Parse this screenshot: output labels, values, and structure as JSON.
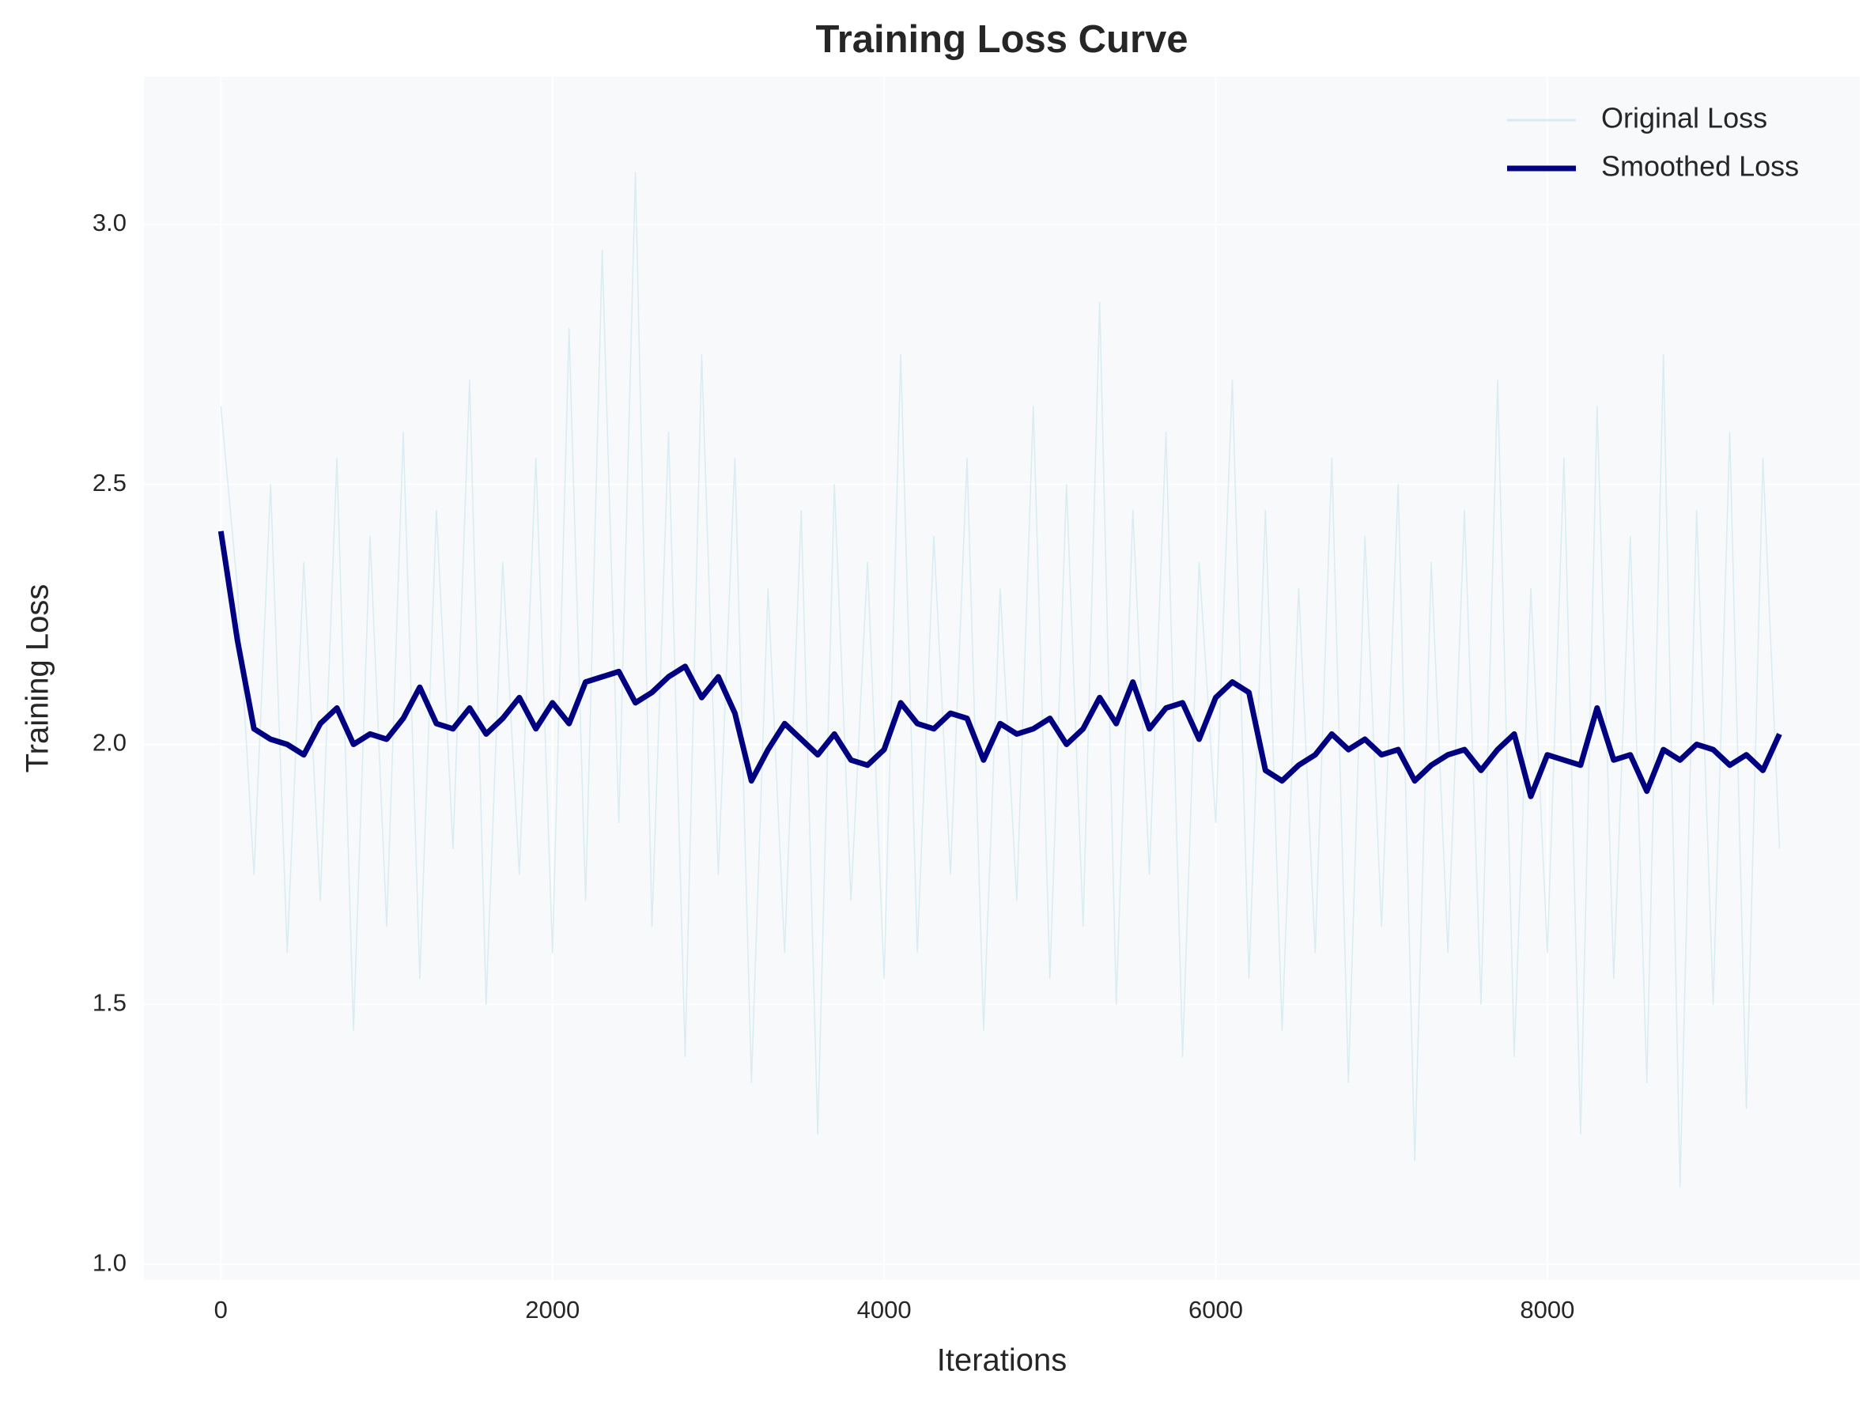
{
  "chart_data": {
    "type": "line",
    "title": "Training Loss Curve",
    "xlabel": "Iterations",
    "ylabel": "Training Loss",
    "x": [
      0,
      100,
      200,
      300,
      400,
      500,
      600,
      700,
      800,
      900,
      1000,
      1100,
      1200,
      1300,
      1400,
      1500,
      1600,
      1700,
      1800,
      1900,
      2000,
      2100,
      2200,
      2300,
      2400,
      2500,
      2600,
      2700,
      2800,
      2900,
      3000,
      3100,
      3200,
      3300,
      3400,
      3500,
      3600,
      3700,
      3800,
      3900,
      4000,
      4100,
      4200,
      4300,
      4400,
      4500,
      4600,
      4700,
      4800,
      4900,
      5000,
      5100,
      5200,
      5300,
      5400,
      5500,
      5600,
      5700,
      5800,
      5900,
      6000,
      6100,
      6200,
      6300,
      6400,
      6500,
      6600,
      6700,
      6800,
      6900,
      7000,
      7100,
      7200,
      7300,
      7400,
      7500,
      7600,
      7700,
      7800,
      7900,
      8000,
      8100,
      8200,
      8300,
      8400,
      8500,
      8600,
      8700,
      8800,
      8900,
      9000,
      9100,
      9200,
      9300,
      9400
    ],
    "series": [
      {
        "name": "Original Loss",
        "color": "#d9ecf0",
        "width": 1.5,
        "values": [
          2.65,
          2.3,
          1.75,
          2.5,
          1.6,
          2.35,
          1.7,
          2.55,
          1.45,
          2.4,
          1.65,
          2.6,
          1.55,
          2.45,
          1.8,
          2.7,
          1.5,
          2.35,
          1.75,
          2.55,
          1.6,
          2.8,
          1.7,
          2.95,
          1.85,
          3.1,
          1.65,
          2.6,
          1.4,
          2.75,
          1.75,
          2.55,
          1.35,
          2.3,
          1.6,
          2.45,
          1.25,
          2.5,
          1.7,
          2.35,
          1.55,
          2.75,
          1.6,
          2.4,
          1.75,
          2.55,
          1.45,
          2.3,
          1.7,
          2.65,
          1.55,
          2.5,
          1.65,
          2.85,
          1.5,
          2.45,
          1.75,
          2.6,
          1.4,
          2.35,
          1.85,
          2.7,
          1.55,
          2.45,
          1.45,
          2.3,
          1.6,
          2.55,
          1.35,
          2.4,
          1.65,
          2.5,
          1.2,
          2.35,
          1.6,
          2.45,
          1.5,
          2.7,
          1.4,
          2.3,
          1.6,
          2.55,
          1.25,
          2.65,
          1.55,
          2.4,
          1.35,
          2.75,
          1.15,
          2.45,
          1.5,
          2.6,
          1.3,
          2.55,
          1.8
        ]
      },
      {
        "name": "Smoothed Loss",
        "color": "#000080",
        "width": 7,
        "values": [
          2.41,
          2.2,
          2.03,
          2.01,
          2.0,
          1.98,
          2.04,
          2.07,
          2.0,
          2.02,
          2.01,
          2.05,
          2.11,
          2.04,
          2.03,
          2.07,
          2.02,
          2.05,
          2.09,
          2.03,
          2.08,
          2.04,
          2.12,
          2.13,
          2.14,
          2.08,
          2.1,
          2.13,
          2.15,
          2.09,
          2.13,
          2.06,
          1.93,
          1.99,
          2.04,
          2.01,
          1.98,
          2.02,
          1.97,
          1.96,
          1.99,
          2.08,
          2.04,
          2.03,
          2.06,
          2.05,
          1.97,
          2.04,
          2.02,
          2.03,
          2.05,
          2.0,
          2.03,
          2.09,
          2.04,
          2.12,
          2.03,
          2.07,
          2.08,
          2.01,
          2.09,
          2.12,
          2.1,
          1.95,
          1.93,
          1.96,
          1.98,
          2.02,
          1.99,
          2.01,
          1.98,
          1.99,
          1.93,
          1.96,
          1.98,
          1.99,
          1.95,
          1.99,
          2.02,
          1.9,
          1.98,
          1.97,
          1.96,
          2.07,
          1.97,
          1.98,
          1.91,
          1.99,
          1.97,
          2.0,
          1.99,
          1.96,
          1.98,
          1.95,
          2.02
        ]
      }
    ],
    "xlim": [
      -464,
      9884
    ],
    "ylim": [
      0.97,
      3.284
    ],
    "xticks": [
      0,
      2000,
      4000,
      6000,
      8000
    ],
    "yticks": [
      {
        "value": 1,
        "label": "1.0"
      },
      1.5,
      {
        "value": 2,
        "label": "2.0"
      },
      2.5,
      {
        "value": 3,
        "label": "3.0"
      }
    ],
    "grid": true,
    "legend": "upper right",
    "background": "#f7f9fb"
  }
}
